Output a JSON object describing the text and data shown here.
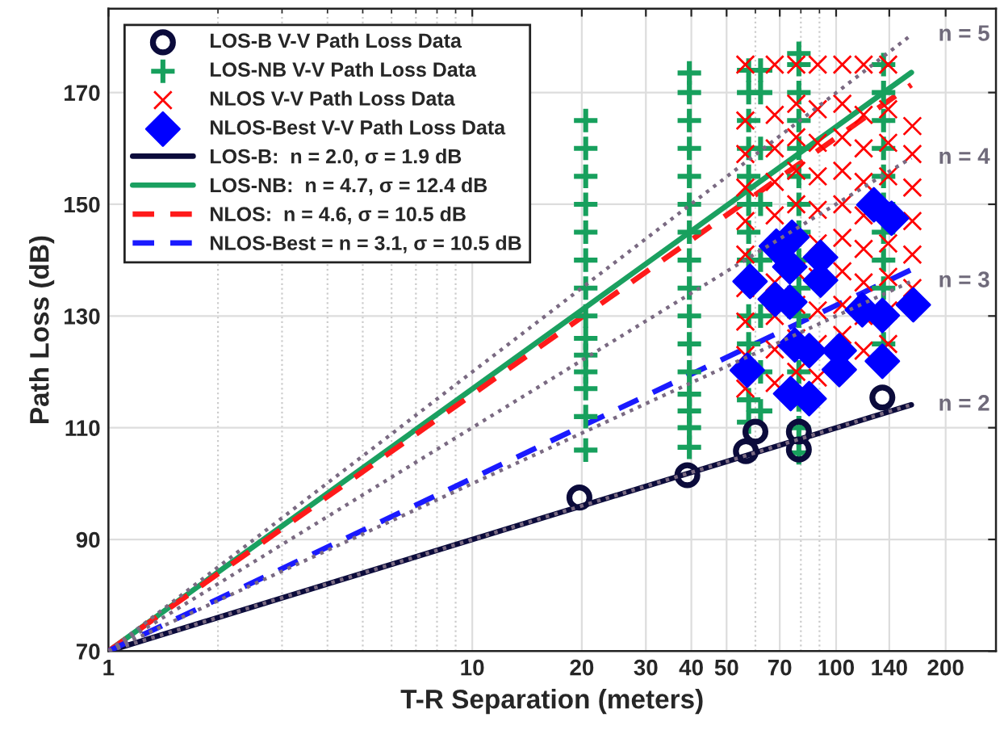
{
  "chart_data": {
    "type": "scatter",
    "xlabel": "T-R Separation (meters)",
    "ylabel": "Path Loss (dB)",
    "log": "x",
    "xlim": [
      1,
      275
    ],
    "ylim": [
      70,
      185
    ],
    "xticks": [
      1,
      10,
      20,
      30,
      40,
      50,
      70,
      100,
      140,
      200
    ],
    "yticks": [
      70,
      90,
      110,
      130,
      150,
      170
    ],
    "grid": true,
    "legend": "top left",
    "series": [
      {
        "marker": "circle",
        "name": "LOS-B V-V Path Loss Data",
        "color": "#0b0b3b",
        "x": [
          19.7,
          39,
          56.5,
          60,
          79,
          79,
          134
        ],
        "values": [
          97.5,
          101.5,
          105.8,
          109.3,
          109.3,
          106.1,
          115.4
        ]
      },
      {
        "marker": "plus",
        "name": "LOS-NB V-V Path Loss Data",
        "color": "#17a05d",
        "x": [
          20.5,
          20.5,
          20.5,
          20.5,
          20.5,
          20.5,
          20.5,
          20.5,
          20.5,
          20.5,
          20.5,
          20.5,
          20.5,
          20.5,
          39.5,
          39.5,
          39.5,
          39.5,
          39.5,
          39.5,
          39.5,
          39.5,
          39.5,
          39.5,
          39.5,
          39.5,
          39.5,
          39.5,
          39.5,
          39.5,
          57.5,
          57.5,
          57.5,
          57.5,
          57.5,
          57.5,
          57.5,
          57.5,
          57.5,
          57.5,
          57.5,
          57.5,
          62,
          62,
          62,
          62,
          62,
          62,
          62,
          62,
          79,
          79,
          79,
          79,
          79,
          79,
          79,
          79,
          79,
          79,
          79,
          79,
          79,
          79,
          79,
          79,
          135,
          135,
          135,
          135,
          135,
          135,
          135,
          135,
          135,
          135
        ],
        "values": [
          106,
          112,
          117,
          120,
          123,
          126,
          130,
          135,
          140,
          145,
          150,
          155,
          160,
          165,
          106.5,
          110,
          113,
          116,
          120,
          125,
          130,
          135,
          140,
          145,
          150,
          155,
          160,
          165,
          170,
          173.5,
          111,
          115,
          125,
          130,
          140,
          145,
          150,
          155,
          160,
          165,
          170,
          174,
          113,
          120,
          130,
          140,
          150,
          160,
          170,
          174,
          105.5,
          110,
          115,
          120,
          125,
          130,
          135,
          140,
          145,
          150,
          155,
          160,
          165,
          170,
          175,
          177,
          125,
          135,
          140,
          145,
          150,
          155,
          160,
          165,
          170,
          175
        ]
      },
      {
        "marker": "cross",
        "name": "NLOS V-V Path Loss Data",
        "color": "#ff0000",
        "x": [
          56.3,
          56.3,
          56.3,
          56.3,
          56.3,
          56.3,
          56.3,
          56.3,
          56.3,
          56.3,
          67.8,
          67.8,
          67.8,
          67.8,
          67.8,
          67.8,
          67.8,
          67.8,
          67.8,
          77.7,
          77.7,
          77.7,
          77.7,
          77.7,
          77.7,
          77.7,
          77.7,
          77.7,
          89,
          89,
          89,
          89,
          89,
          89,
          89,
          89,
          89,
          89,
          104,
          104,
          104,
          104,
          104,
          104,
          104,
          104,
          104,
          119,
          119,
          119,
          119,
          119,
          119,
          119,
          119,
          119,
          139,
          139,
          139,
          139,
          139,
          139,
          139,
          139,
          162,
          162,
          162,
          162,
          162,
          162
        ],
        "values": [
          117,
          123,
          129,
          135,
          141,
          147,
          153,
          159,
          165,
          175,
          118,
          124,
          130,
          136,
          148,
          154,
          160,
          166,
          175,
          120,
          126,
          132,
          138,
          150,
          156,
          162,
          168,
          175,
          119,
          125,
          131,
          137,
          143,
          149,
          155,
          161,
          167,
          175,
          126.6,
          132,
          138,
          144,
          150,
          156,
          162,
          168,
          175,
          123.8,
          130,
          136,
          142,
          148,
          154,
          160,
          166,
          175,
          125,
          131,
          137,
          143,
          155,
          161,
          167,
          175,
          135,
          141,
          147,
          153,
          159,
          164
        ]
      },
      {
        "marker": "diamond",
        "name": "NLOS-Best V-V Path Loss Data",
        "color": "#0000ff",
        "x": [
          58,
          68.5,
          75.6,
          74.6,
          90.6,
          90.6,
          68,
          74.6,
          57,
          77,
          84.3,
          75,
          84.3,
          102,
          102,
          118,
          127,
          142,
          134,
          134,
          163
        ],
        "values": [
          136.2,
          142.5,
          144.1,
          138.8,
          140.5,
          136.4,
          133,
          132.5,
          120.3,
          124.8,
          123.8,
          116.1,
          115.2,
          123.8,
          120.4,
          131.1,
          149.9,
          147.5,
          130.1,
          121.9,
          132
        ]
      },
      {
        "type": "line",
        "line_style": "solid",
        "name": "LOS-B:  n = 2.0, σ = 1.9 dB",
        "color": "#0b0b3b",
        "x": [
          1,
          161
        ],
        "values": [
          70,
          114.1
        ]
      },
      {
        "type": "line",
        "line_style": "solid",
        "name": "LOS-NB:  n = 4.7, σ = 12.4 dB",
        "color": "#1aa060",
        "x": [
          1,
          161
        ],
        "values": [
          70,
          173.6
        ]
      },
      {
        "type": "line",
        "line_style": "dashed",
        "name": "NLOS:  n = 4.6, σ = 10.5 dB",
        "color": "#ff1a1a",
        "x": [
          1,
          161
        ],
        "values": [
          70,
          171.4
        ]
      },
      {
        "type": "line",
        "line_style": "dashed",
        "name": "NLOS-Best = n = 3.1, σ = 10.5 dB",
        "color": "#1a1aff",
        "x": [
          1,
          161
        ],
        "values": [
          70,
          138.3
        ]
      },
      {
        "type": "line",
        "line_style": "dotted",
        "name": "n = 5",
        "color": "#7a6a82",
        "x": [
          1,
          161
        ],
        "values": [
          70,
          180.3
        ]
      },
      {
        "type": "line",
        "line_style": "dotted",
        "name": "n = 4",
        "color": "#7a6a82",
        "x": [
          1,
          161
        ],
        "values": [
          70,
          158.3
        ]
      },
      {
        "type": "line",
        "line_style": "dotted",
        "name": "n = 3",
        "color": "#7a6a82",
        "x": [
          1,
          161
        ],
        "values": [
          70,
          136.2
        ]
      },
      {
        "type": "line",
        "line_style": "dotted",
        "name": "n = 2",
        "color": "#7a6a82",
        "x": [
          1,
          161
        ],
        "values": [
          70,
          114.1
        ]
      }
    ]
  }
}
